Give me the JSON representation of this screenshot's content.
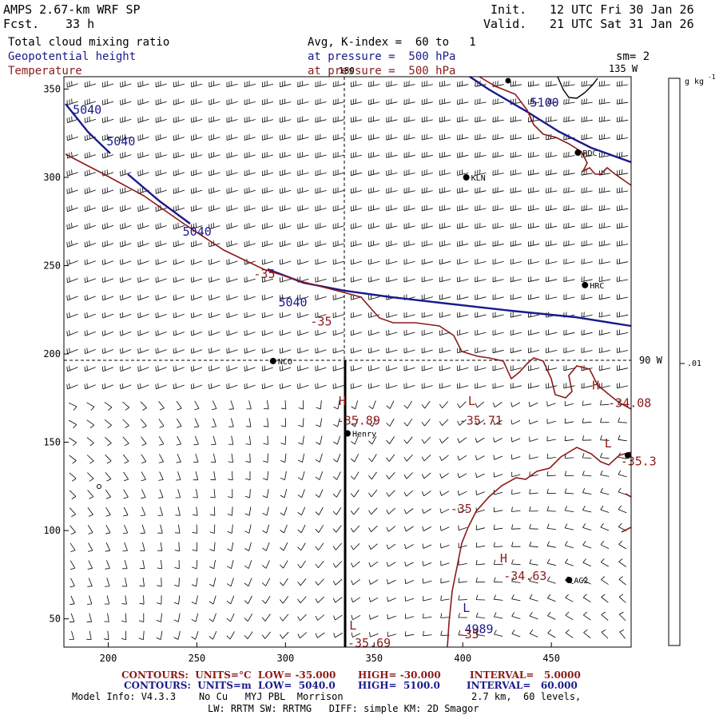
{
  "header": {
    "model": "AMPS 2.67-km WRF SP",
    "fcst_label": "Fcst.",
    "fcst_value": "33 h",
    "init_label": "Init.",
    "init_value": "12 UTC Fri 30 Jan 26",
    "valid_label": "Valid.",
    "valid_value": "21 UTC Sat 31 Jan 26"
  },
  "fields": {
    "cloud": "Total cloud mixing ratio",
    "geopotential": "Geopotential height",
    "temperature": "Temperature",
    "avg_text": "Avg, K-index =  60 to   1",
    "pressure_geo": "at pressure =  500 hPa",
    "pressure_temp": "at pressure =  500 hPa",
    "sm": "sm= 2"
  },
  "map_labels": {
    "lon_180": "180",
    "lon_135w": "135 W",
    "lon_90w": "90 W",
    "legend_units": "g kg",
    "legend_exp": "-1",
    "legend_tick": ".01"
  },
  "axes": {
    "x_ticks": [
      200,
      250,
      300,
      350,
      400,
      450
    ],
    "x_range": [
      175,
      495
    ],
    "y_ticks": [
      50,
      100,
      150,
      200,
      250,
      300,
      350
    ],
    "y_range": [
      34,
      357
    ]
  },
  "stations": [
    {
      "name": "RDC",
      "x": 465,
      "y": 314
    },
    {
      "name": "KLN",
      "x": 402,
      "y": 300
    },
    {
      "name": "HRC",
      "x": 469,
      "y": 239
    },
    {
      "name": "NCO",
      "x": 293,
      "y": 196
    },
    {
      "name": "Henry",
      "x": 335,
      "y": 155
    },
    {
      "name": "AG2",
      "x": 460,
      "y": 72
    }
  ],
  "contour_labels": {
    "geo": [
      {
        "text": "5040",
        "x": 180,
        "y": 336
      },
      {
        "text": "5040",
        "x": 199,
        "y": 318
      },
      {
        "text": "5040",
        "x": 242,
        "y": 267
      },
      {
        "text": "5040",
        "x": 296,
        "y": 227
      },
      {
        "text": "5100",
        "x": 438,
        "y": 340
      },
      {
        "text": "L",
        "x": 400,
        "y": 54
      },
      {
        "text": "4989",
        "x": 401,
        "y": 42
      }
    ],
    "temp": [
      {
        "text": "-35",
        "x": 282,
        "y": 243
      },
      {
        "text": "-35",
        "x": 314,
        "y": 216
      },
      {
        "text": "-35",
        "x": 393,
        "y": 110
      },
      {
        "text": "-35",
        "x": 397,
        "y": 39
      },
      {
        "text": "H",
        "x": 330,
        "y": 171
      },
      {
        "text": "-35.89",
        "x": 329,
        "y": 160
      },
      {
        "text": "L",
        "x": 403,
        "y": 171
      },
      {
        "text": "-35.71",
        "x": 398,
        "y": 160
      },
      {
        "text": "H",
        "x": 473,
        "y": 180
      },
      {
        "text": "-34.08",
        "x": 482,
        "y": 170
      },
      {
        "text": "L",
        "x": 480,
        "y": 147
      },
      {
        "text": "-35.3",
        "x": 489,
        "y": 137
      },
      {
        "text": "H",
        "x": 421,
        "y": 82
      },
      {
        "text": "-34.63",
        "x": 423,
        "y": 72
      },
      {
        "text": "L",
        "x": 336,
        "y": 44
      },
      {
        "text": "-35.69",
        "x": 335,
        "y": 34
      }
    ]
  },
  "footer": {
    "temp_contours": "CONTOURS:  UNITS=°C  LOW= -35.000",
    "temp_high": "HIGH= -30.000",
    "temp_interval": "INTERVAL=   5.0000",
    "geo_contours": "CONTOURS:  UNITS=m  LOW=  5040.0",
    "geo_high": "HIGH=  5100.0",
    "geo_interval": "INTERVAL=   60.000",
    "model_info": "Model Info: V4.3.3    No Cu   MYJ PBL  Morrison",
    "resolution": "2.7 km,  60 levels,",
    "physics": "LW: RRTM SW: RRTMG   DIFF: simple KM: 2D Smagor"
  },
  "colors": {
    "geopotential": "#1a1a8c",
    "temperature": "#8b1a1a"
  }
}
